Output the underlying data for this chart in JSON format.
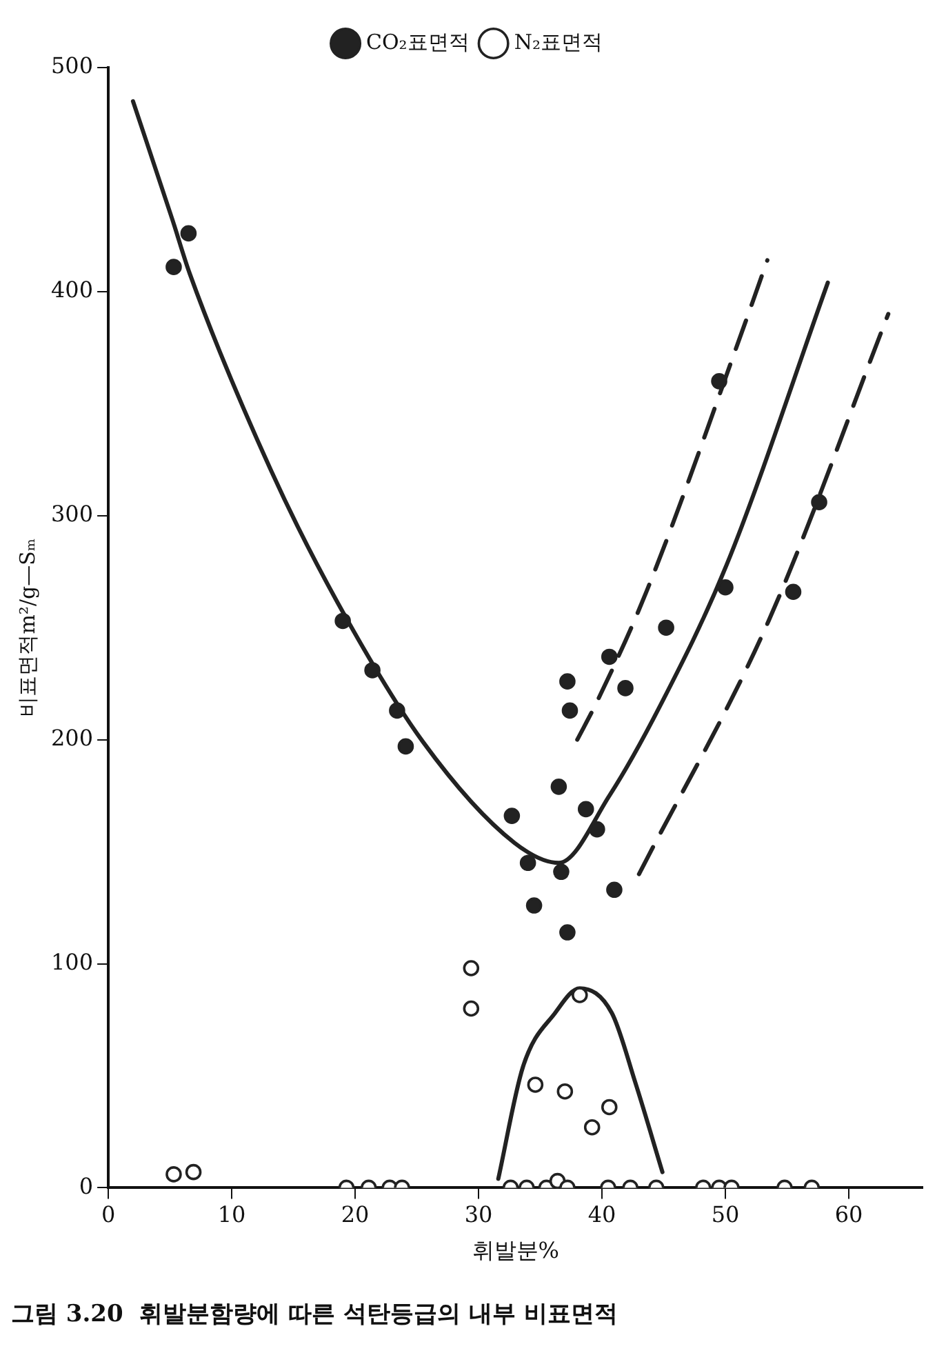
{
  "chart_data": {
    "type": "scatter",
    "title": "그림 3.20  휘발분함량에 따른 석탄등급의 내부 비표면적",
    "xlabel": "휘발분%",
    "ylabel": "비표면적m²/g—Sₘ",
    "xlim": [
      0,
      66
    ],
    "xticks": [
      0,
      10,
      20,
      30,
      40,
      50,
      60
    ],
    "ylim": [
      0,
      500
    ],
    "yticks": [
      0,
      100,
      200,
      300,
      400,
      500
    ],
    "legend": "top",
    "grid": false,
    "series": [
      {
        "name": "CO₂표면적",
        "marker": "circle",
        "color": "#222222",
        "x": [
          5.3,
          6.5,
          19.0,
          21.4,
          23.4,
          24.1,
          32.7,
          34.0,
          34.5,
          36.7,
          37.2,
          36.5,
          37.2,
          37.4,
          40.6,
          41.9,
          38.7,
          39.6,
          41.0,
          49.5,
          50.0,
          57.6,
          55.5,
          45.2
        ],
        "values": [
          411,
          426,
          253,
          231,
          213,
          197,
          166,
          145,
          126,
          141,
          114,
          179,
          226,
          213,
          237,
          223,
          169,
          160,
          133,
          360,
          268,
          306,
          266,
          250
        ]
      },
      {
        "name": "N₂표면적",
        "marker": "circle",
        "color": "#ffffff",
        "x": [
          5.3,
          6.9,
          19.3,
          21.1,
          22.8,
          23.8,
          29.4,
          29.4,
          32.6,
          33.9,
          35.5,
          36.4,
          37.2,
          40.5,
          42.3,
          44.4,
          48.2,
          49.5,
          50.5,
          54.8,
          57.0,
          34.6,
          37.0,
          39.2,
          40.6,
          38.2
        ],
        "values": [
          6,
          7,
          0,
          0,
          0,
          0,
          98,
          80,
          0,
          0,
          0,
          3,
          0,
          0,
          0,
          0,
          0,
          0,
          0,
          0,
          0,
          46,
          43,
          27,
          36,
          86
        ]
      },
      {
        "type": "line",
        "line_style": "solid",
        "color": "#222222",
        "x": [
          2.0,
          5.2,
          6.6,
          13.2,
          18.6,
          25.5,
          32.9,
          36.5,
          40.6,
          44.7,
          50.1,
          58.3
        ],
        "values": [
          485,
          432,
          408,
          320,
          261,
          199,
          154,
          145,
          175,
          215,
          278,
          404
        ]
      },
      {
        "type": "line",
        "line_style": "dashed",
        "color": "#222222",
        "x": [
          38.0,
          39.6,
          43.6,
          51.6,
          53.4
        ],
        "values": [
          200,
          217,
          266,
          386,
          414
        ]
      },
      {
        "type": "line",
        "line_style": "dashed",
        "color": "#222222",
        "x": [
          43.0,
          53.5,
          63.2
        ],
        "values": [
          140,
          253,
          390
        ]
      },
      {
        "type": "line",
        "line_style": "solid",
        "color": "#222222",
        "x": [
          31.6,
          33.6,
          36.2,
          38.2,
          40.8,
          42.7,
          44.9
        ],
        "values": [
          4,
          54,
          78,
          89,
          78,
          47,
          7
        ]
      }
    ]
  }
}
